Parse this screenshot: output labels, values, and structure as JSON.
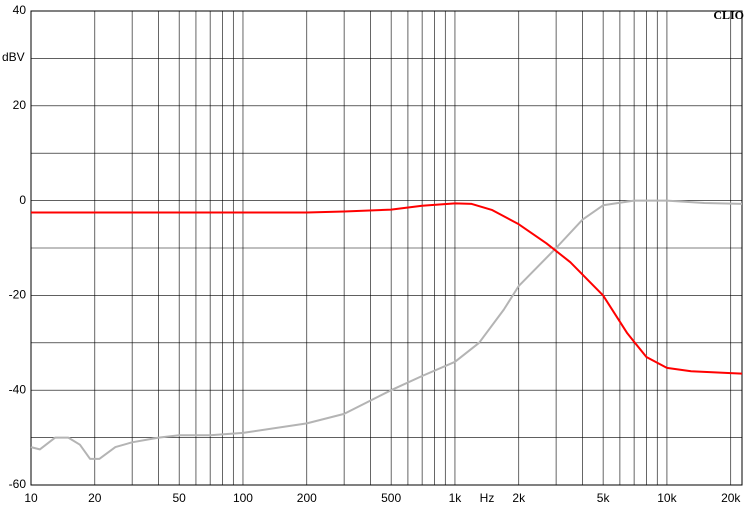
{
  "chart_data": {
    "type": "line",
    "brand": "CLIO",
    "y_label": "dBV",
    "x_label": "Hz",
    "log_x": true,
    "grid": true,
    "xlim": [
      10,
      22600
    ],
    "ylim": [
      -60,
      40
    ],
    "xticks": [
      10,
      20,
      50,
      100,
      200,
      500,
      {
        "value": 1000,
        "label": "1k"
      },
      {
        "value": 2000,
        "label": "2k"
      },
      {
        "value": 5000,
        "label": "5k"
      },
      {
        "value": 10000,
        "label": "10k"
      },
      {
        "value": 20000,
        "label": "20k"
      }
    ],
    "x_minor_grid": [
      30,
      40,
      60,
      70,
      80,
      90,
      300,
      400,
      600,
      700,
      800,
      900,
      3000,
      4000,
      6000,
      7000,
      8000,
      9000
    ],
    "yticks": [
      -60,
      -40,
      -20,
      0,
      20,
      40
    ],
    "y_minor_grid": [
      -50,
      -30,
      -10,
      10,
      30
    ],
    "series": [
      {
        "color": "#ff0000",
        "x": [
          10,
          50,
          100,
          200,
          300,
          500,
          700,
          1000,
          1200,
          1500,
          2000,
          2700,
          3500,
          5000,
          6500,
          8000,
          10000,
          13000,
          20000,
          22600
        ],
        "values": [
          -2.5,
          -2.5,
          -2.5,
          -2.5,
          -2.3,
          -1.9,
          -1.1,
          -0.6,
          -0.7,
          -2,
          -5,
          -9,
          -13,
          -20,
          -28,
          -33,
          -35.3,
          -36,
          -36.4,
          -36.5
        ]
      },
      {
        "color": "#b4b4b4",
        "x": [
          10,
          11,
          13,
          15,
          17,
          19,
          21,
          25,
          30,
          40,
          50,
          70,
          100,
          200,
          300,
          500,
          700,
          1000,
          1300,
          1700,
          2000,
          3000,
          4000,
          5000,
          7000,
          10000,
          15000,
          22600
        ],
        "values": [
          -52,
          -52.5,
          -50,
          -50,
          -51.5,
          -54.5,
          -54.5,
          -52,
          -51,
          -50,
          -49.5,
          -49.5,
          -49,
          -47,
          -45,
          -40,
          -37,
          -34,
          -30,
          -23,
          -18,
          -10,
          -4,
          -1,
          0,
          0,
          -0.5,
          -0.7
        ]
      }
    ]
  }
}
